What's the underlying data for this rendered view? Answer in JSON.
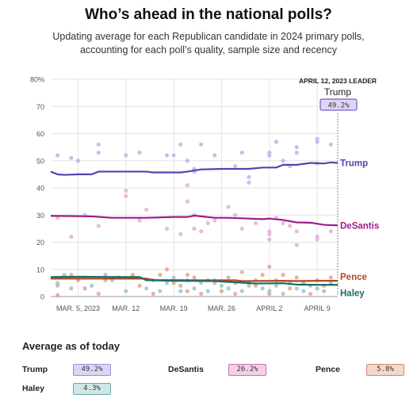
{
  "header": {
    "title": "Who’s ahead in the national polls?",
    "subtitle_line1": "Updating average for each Republican candidate in 2024 primary polls,",
    "subtitle_line2": "accounting for each poll’s quality, sample size and recency"
  },
  "leader_box": {
    "label": "APRIL 12, 2023 LEADER",
    "name": "Trump",
    "value": "49.2%"
  },
  "colors": {
    "trump": "#5b3fae",
    "desantis": "#9c1d86",
    "pence": "#b4471e",
    "haley": "#1b6b6b",
    "grid": "#e3e3e3"
  },
  "chart_data": {
    "type": "line",
    "title": "Who’s ahead in the national polls?",
    "x_ticks": [
      "MAR. 5, 2023",
      "MAR. 12",
      "MAR. 19",
      "MAR. 26",
      "APRIL 2",
      "APRIL 9"
    ],
    "x_tick_days": [
      4,
      11,
      18,
      25,
      32,
      39
    ],
    "x_range_days": [
      0,
      42
    ],
    "y_ticks": [
      "80%",
      "70",
      "60",
      "50",
      "40",
      "30",
      "20",
      "10",
      "0"
    ],
    "ylim": [
      0,
      80
    ],
    "grid": true,
    "legend": "right end labels",
    "series": [
      {
        "name": "Trump",
        "x": [
          0,
          1,
          2,
          4,
          6,
          7,
          10,
          14,
          15,
          19,
          20,
          22,
          25,
          29,
          31,
          33,
          34,
          36,
          38,
          40,
          41,
          42
        ],
        "values": [
          46,
          45,
          44.8,
          45,
          45,
          46,
          46,
          46,
          45.7,
          45.7,
          46,
          46.8,
          47,
          47,
          47.5,
          47.5,
          48.5,
          48.5,
          49.2,
          49,
          49.4,
          49.2
        ],
        "color": "#5b3fae",
        "polls": [
          [
            1,
            52
          ],
          [
            3,
            51
          ],
          [
            4,
            50
          ],
          [
            7,
            56
          ],
          [
            7,
            53
          ],
          [
            11,
            52
          ],
          [
            13,
            53
          ],
          [
            17,
            52
          ],
          [
            18,
            52
          ],
          [
            19,
            56
          ],
          [
            20,
            50
          ],
          [
            21,
            46
          ],
          [
            21,
            47
          ],
          [
            22,
            56
          ],
          [
            24,
            52
          ],
          [
            27,
            48
          ],
          [
            28,
            53
          ],
          [
            29,
            44
          ],
          [
            29,
            42
          ],
          [
            32,
            53
          ],
          [
            32,
            52
          ],
          [
            33,
            57
          ],
          [
            34,
            50
          ],
          [
            35,
            48
          ],
          [
            36,
            53
          ],
          [
            36,
            55
          ],
          [
            39,
            58
          ],
          [
            39,
            57
          ],
          [
            39,
            49
          ],
          [
            41,
            56
          ]
        ]
      },
      {
        "name": "DeSantis",
        "x": [
          0,
          4,
          6,
          9,
          14,
          18,
          20,
          21,
          24,
          26,
          29,
          31,
          32,
          34,
          36,
          38,
          40,
          42
        ],
        "values": [
          29.7,
          29.6,
          29.5,
          29,
          29,
          29.3,
          29.3,
          29.8,
          29,
          29,
          28.7,
          28.5,
          28.7,
          28.2,
          27.3,
          27.2,
          26.4,
          26.2
        ],
        "color": "#9c1d86",
        "polls": [
          [
            1,
            29
          ],
          [
            3,
            22
          ],
          [
            5,
            30
          ],
          [
            7,
            26
          ],
          [
            11,
            39
          ],
          [
            11,
            37
          ],
          [
            13,
            28
          ],
          [
            14,
            32
          ],
          [
            17,
            25
          ],
          [
            19,
            23
          ],
          [
            20,
            41
          ],
          [
            20,
            35
          ],
          [
            21,
            30
          ],
          [
            21,
            25
          ],
          [
            22,
            24
          ],
          [
            23,
            27
          ],
          [
            24,
            28
          ],
          [
            26,
            33
          ],
          [
            27,
            30
          ],
          [
            28,
            25
          ],
          [
            30,
            27
          ],
          [
            32,
            24
          ],
          [
            32,
            23
          ],
          [
            32,
            21
          ],
          [
            33,
            29
          ],
          [
            34,
            27
          ],
          [
            35,
            26
          ],
          [
            36,
            19
          ],
          [
            36,
            24
          ],
          [
            39,
            22
          ],
          [
            39,
            21
          ],
          [
            41,
            24
          ]
        ]
      },
      {
        "name": "Pence",
        "x": [
          0,
          10,
          14,
          15,
          22,
          27,
          28,
          34,
          36,
          40,
          42
        ],
        "values": [
          6.6,
          6.6,
          6.6,
          6.1,
          6,
          6,
          5.7,
          5.8,
          5.7,
          5.8,
          5.8
        ],
        "color": "#b4471e",
        "polls": [
          [
            1,
            4
          ],
          [
            1,
            0.5
          ],
          [
            3,
            8
          ],
          [
            4,
            6
          ],
          [
            5,
            3
          ],
          [
            7,
            1
          ],
          [
            8,
            6
          ],
          [
            10,
            7
          ],
          [
            12,
            8
          ],
          [
            13,
            4
          ],
          [
            15,
            1
          ],
          [
            16,
            8
          ],
          [
            17,
            10
          ],
          [
            18,
            5
          ],
          [
            19,
            4
          ],
          [
            20,
            8
          ],
          [
            20,
            2
          ],
          [
            21,
            7
          ],
          [
            22,
            1
          ],
          [
            23,
            6
          ],
          [
            24,
            5
          ],
          [
            25,
            2
          ],
          [
            26,
            7
          ],
          [
            27,
            1
          ],
          [
            28,
            9
          ],
          [
            29,
            5
          ],
          [
            30,
            4
          ],
          [
            31,
            8
          ],
          [
            32,
            11
          ],
          [
            32,
            1
          ],
          [
            33,
            6
          ],
          [
            34,
            8
          ],
          [
            35,
            3
          ],
          [
            36,
            7
          ],
          [
            37,
            5
          ],
          [
            38,
            1
          ],
          [
            39,
            6
          ],
          [
            40,
            4
          ],
          [
            41,
            7
          ]
        ]
      },
      {
        "name": "Haley",
        "x": [
          0,
          4,
          10,
          13,
          14,
          18,
          24,
          28,
          30,
          34,
          36,
          40,
          42
        ],
        "values": [
          7.2,
          7.3,
          7.2,
          7.2,
          6,
          5.8,
          5.7,
          5.1,
          4.8,
          4.9,
          4.4,
          4.3,
          4.3
        ],
        "color": "#1b6b6b",
        "polls": [
          [
            1,
            5
          ],
          [
            2,
            8
          ],
          [
            3,
            3
          ],
          [
            5,
            7
          ],
          [
            6,
            4
          ],
          [
            8,
            8
          ],
          [
            9,
            6
          ],
          [
            11,
            2
          ],
          [
            12,
            7
          ],
          [
            14,
            3
          ],
          [
            15,
            6
          ],
          [
            16,
            2
          ],
          [
            17,
            5
          ],
          [
            18,
            7
          ],
          [
            19,
            2
          ],
          [
            20,
            6
          ],
          [
            21,
            3
          ],
          [
            22,
            5
          ],
          [
            23,
            2
          ],
          [
            24,
            6
          ],
          [
            25,
            4
          ],
          [
            26,
            3
          ],
          [
            27,
            5
          ],
          [
            28,
            2
          ],
          [
            29,
            4
          ],
          [
            30,
            6
          ],
          [
            31,
            3
          ],
          [
            32,
            2
          ],
          [
            33,
            4
          ],
          [
            34,
            1
          ],
          [
            35,
            5
          ],
          [
            36,
            3
          ],
          [
            37,
            2
          ],
          [
            38,
            4
          ],
          [
            39,
            3
          ],
          [
            40,
            2
          ],
          [
            41,
            5
          ]
        ]
      }
    ]
  },
  "averages": {
    "heading": "Average as of today",
    "items": [
      {
        "name": "Trump",
        "value": "49.2%"
      },
      {
        "name": "DeSantis",
        "value": "26.2%"
      },
      {
        "name": "Pence",
        "value": "5.8%"
      },
      {
        "name": "Haley",
        "value": "4.3%"
      }
    ]
  }
}
